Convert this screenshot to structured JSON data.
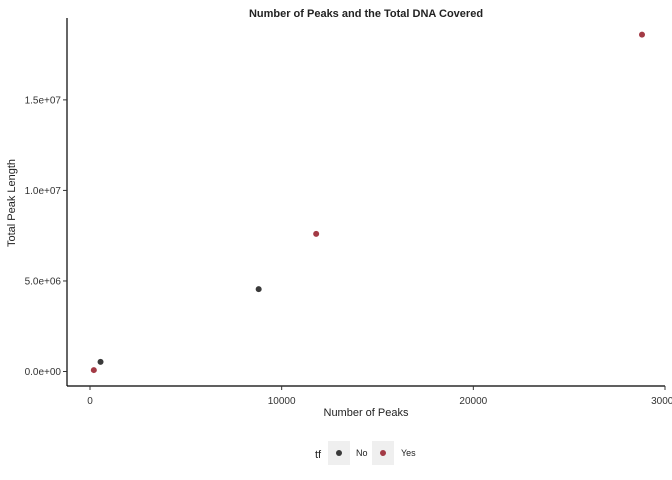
{
  "chart_data": {
    "type": "scatter",
    "title": "Number of Peaks and the Total DNA Covered",
    "xlabel": "Number of Peaks",
    "ylabel": "Total Peak Length",
    "xlim": [
      -1200,
      30000
    ],
    "ylim": [
      -800000,
      19300000
    ],
    "x_ticks": [
      0,
      10000,
      20000,
      30000
    ],
    "x_tick_labels": [
      "0",
      "10000",
      "20000",
      "30000"
    ],
    "y_ticks": [
      0,
      5000000,
      10000000,
      15000000
    ],
    "y_tick_labels": [
      "0.0e+00",
      "5.0e+06",
      "1.0e+07",
      "1.5e+07"
    ],
    "grid": false,
    "legend": {
      "title": "tf",
      "position": "bottom",
      "entries": [
        {
          "label": "No",
          "color": "#3a3a3a"
        },
        {
          "label": "Yes",
          "color": "#a33a45"
        }
      ]
    },
    "series": [
      {
        "label": "No",
        "color": "#3a3a3a",
        "points": [
          [
            550,
            530000
          ],
          [
            8800,
            4550000
          ]
        ]
      },
      {
        "label": "Yes",
        "color": "#a33a45",
        "points": [
          [
            200,
            80000
          ],
          [
            11800,
            7600000
          ],
          [
            28800,
            18600000
          ]
        ]
      }
    ]
  }
}
